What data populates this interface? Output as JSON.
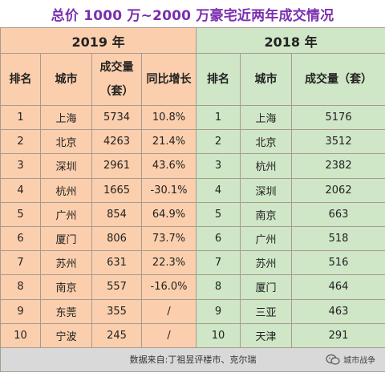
{
  "title": "总价 1000 万~2000 万豪宅近两年成交情况",
  "left": {
    "year": "2019 年",
    "headers": [
      "排名",
      "城市",
      "成交量（套）",
      "同比增长"
    ],
    "rows": [
      [
        "1",
        "上海",
        "5734",
        "10.8%"
      ],
      [
        "2",
        "北京",
        "4263",
        "21.4%"
      ],
      [
        "3",
        "深圳",
        "2961",
        "43.6%"
      ],
      [
        "4",
        "杭州",
        "1665",
        "-30.1%"
      ],
      [
        "5",
        "广州",
        "854",
        "64.9%"
      ],
      [
        "6",
        "厦门",
        "806",
        "73.7%"
      ],
      [
        "7",
        "苏州",
        "631",
        "22.3%"
      ],
      [
        "8",
        "南京",
        "557",
        "-16.0%"
      ],
      [
        "9",
        "东莞",
        "355",
        "/"
      ],
      [
        "10",
        "宁波",
        "245",
        "/"
      ]
    ]
  },
  "right": {
    "year": "2018 年",
    "headers": [
      "排名",
      "城市",
      "成交量（套）"
    ],
    "rows": [
      [
        "1",
        "上海",
        "5176"
      ],
      [
        "2",
        "北京",
        "3512"
      ],
      [
        "3",
        "杭州",
        "2382"
      ],
      [
        "4",
        "深圳",
        "2062"
      ],
      [
        "5",
        "南京",
        "663"
      ],
      [
        "6",
        "广州",
        "518"
      ],
      [
        "7",
        "苏州",
        "516"
      ],
      [
        "8",
        "厦门",
        "464"
      ],
      [
        "9",
        "三亚",
        "463"
      ],
      [
        "10",
        "天津",
        "291"
      ]
    ]
  },
  "footer": {
    "source": "数据来自:丁祖昱评楼市、克尔瑞",
    "logo_text": "城市战争",
    "logo_icon": "wechat-icon"
  },
  "colors": {
    "title": "#7b2fb0",
    "left_bg": "#fbcfad",
    "right_bg": "#cfe6c7",
    "footer_bg": "#d9d9d9"
  }
}
